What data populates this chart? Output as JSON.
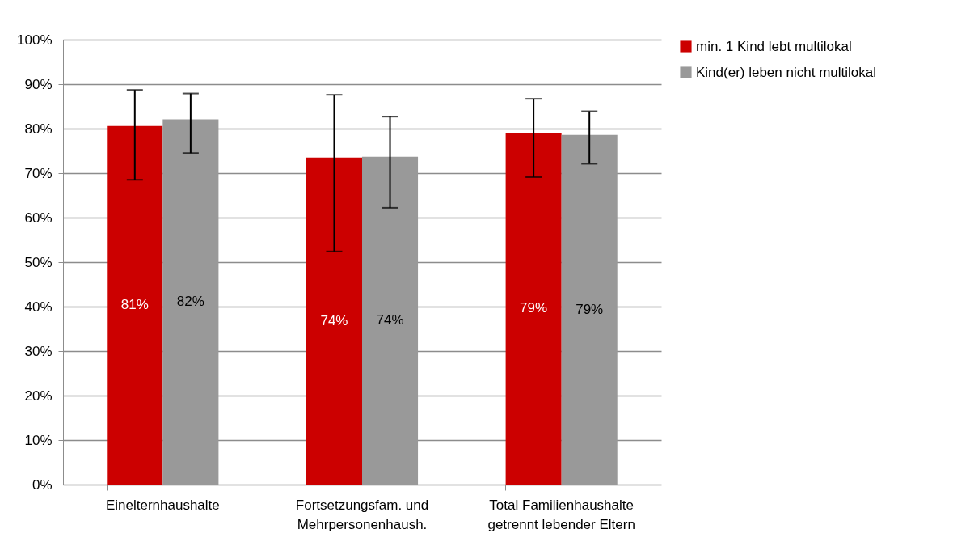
{
  "chart_data": {
    "type": "bar",
    "categories": [
      "Einelternhaushalte",
      "Fortsetzungsfam. und\nMehrpersonenhaush.",
      "Total Familienhaushalte\ngetrennt lebender Eltern"
    ],
    "series": [
      {
        "name": "min. 1 Kind lebt multilokal",
        "color": "#cc0000",
        "values": [
          80.6,
          73.5,
          79.1
        ],
        "errors": [
          [
            68.5,
            88.7
          ],
          [
            52.4,
            87.6
          ],
          [
            69.1,
            86.7
          ]
        ],
        "value_labels": [
          "81%",
          "74%",
          "79%"
        ]
      },
      {
        "name": "Kind(er) leben nicht multilokal",
        "color": "#999999",
        "values": [
          82.1,
          73.7,
          78.6
        ],
        "errors": [
          [
            74.5,
            87.9
          ],
          [
            62.2,
            82.7
          ],
          [
            72.1,
            83.9
          ]
        ],
        "value_labels": [
          "82%",
          "74%",
          "79%"
        ]
      }
    ],
    "ylim": [
      0,
      100
    ],
    "yticks": [
      {
        "value": 0,
        "label": "0%"
      },
      {
        "value": 10,
        "label": "10%"
      },
      {
        "value": 20,
        "label": "20%"
      },
      {
        "value": 30,
        "label": "30%"
      },
      {
        "value": 40,
        "label": "40%"
      },
      {
        "value": 50,
        "label": "50%"
      },
      {
        "value": 60,
        "label": "60%"
      },
      {
        "value": 70,
        "label": "70%"
      },
      {
        "value": 80,
        "label": "80%"
      },
      {
        "value": 90,
        "label": "90%"
      },
      {
        "value": 100,
        "label": "100%"
      }
    ],
    "grid": "y",
    "legend": "right"
  }
}
